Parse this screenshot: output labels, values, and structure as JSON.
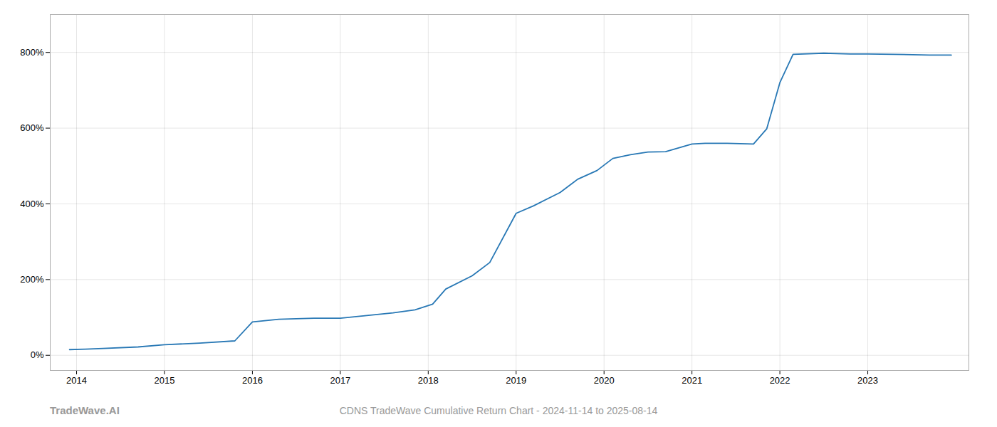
{
  "chart_data": {
    "type": "line",
    "title": "CDNS TradeWave Cumulative Return Chart - 2024-11-14 to 2025-08-14",
    "annotations": [
      "TradeWave.AI"
    ],
    "color": "#2878b5",
    "x": [
      2013.92,
      2014.1,
      2014.3,
      2014.7,
      2015.0,
      2015.4,
      2015.8,
      2016.0,
      2016.3,
      2016.7,
      2017.0,
      2017.3,
      2017.6,
      2017.85,
      2018.05,
      2018.2,
      2018.5,
      2018.7,
      2019.0,
      2019.2,
      2019.5,
      2019.7,
      2019.92,
      2020.1,
      2020.3,
      2020.5,
      2020.7,
      2021.0,
      2021.15,
      2021.4,
      2021.7,
      2021.85,
      2022.0,
      2022.15,
      2022.5,
      2022.8,
      2023.0,
      2023.3,
      2023.7,
      2023.95
    ],
    "values": [
      15,
      16,
      18,
      22,
      28,
      32,
      38,
      88,
      95,
      98,
      98,
      105,
      112,
      120,
      135,
      175,
      210,
      245,
      375,
      395,
      430,
      465,
      488,
      520,
      530,
      537,
      538,
      558,
      560,
      560,
      558,
      598,
      720,
      795,
      798,
      796,
      796,
      795,
      793,
      793
    ],
    "xlim": [
      2013.7,
      2024.15
    ],
    "xticks": [
      2014,
      2015,
      2016,
      2017,
      2018,
      2019,
      2020,
      2021,
      2022,
      2023
    ],
    "ylim": [
      -40,
      900
    ],
    "yticks": [
      {
        "value": 0,
        "label": "0%"
      },
      {
        "value": 200,
        "label": "200%"
      },
      {
        "value": 400,
        "label": "400%"
      },
      {
        "value": 600,
        "label": "600%"
      },
      {
        "value": 800,
        "label": "800%"
      }
    ],
    "grid": true
  }
}
